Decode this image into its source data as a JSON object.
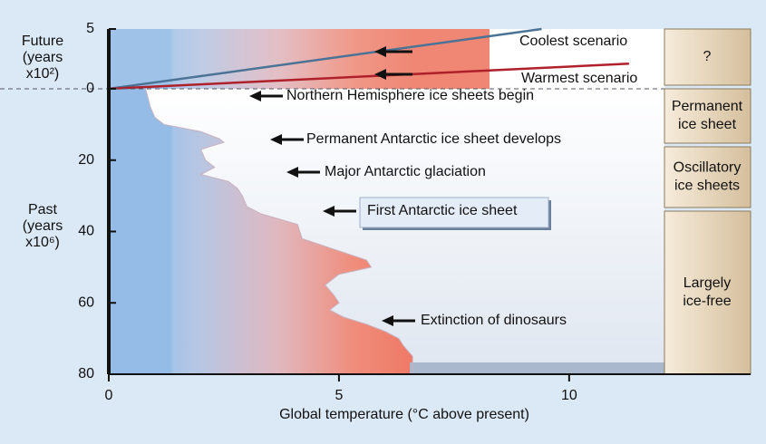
{
  "chart_data": {
    "type": "paleo-temperature",
    "xlabel": "Global temperature (°C above present)",
    "xlim": [
      0,
      14
    ],
    "xticks": [
      0,
      5,
      10
    ],
    "future_axis": {
      "label_lines": [
        "Future",
        "(years",
        "x10²)"
      ],
      "ylim": [
        0,
        5
      ],
      "yticks": [
        5,
        0
      ]
    },
    "past_axis": {
      "label_lines": [
        "Past",
        "(years",
        "x10⁶)"
      ],
      "ylim": [
        0,
        80
      ],
      "yticks": [
        20,
        40,
        60,
        80
      ]
    },
    "temperature_curve": {
      "age": [
        0,
        5,
        8,
        10,
        12,
        14,
        15,
        17,
        20,
        22,
        24,
        26,
        28,
        30,
        33,
        35,
        38,
        42,
        45,
        48,
        50,
        52,
        55,
        58,
        60,
        62,
        64,
        66,
        68,
        70,
        72,
        75,
        80
      ],
      "temp": [
        0.8,
        0.9,
        1.0,
        1.2,
        2.0,
        2.4,
        2.5,
        2.0,
        2.1,
        2.3,
        2.0,
        2.6,
        2.8,
        2.9,
        3.0,
        3.3,
        4.1,
        4.2,
        4.9,
        5.6,
        5.7,
        5.0,
        4.7,
        4.9,
        5.0,
        4.8,
        5.1,
        5.6,
        6.0,
        6.3,
        6.4,
        6.6,
        6.6
      ]
    },
    "series": [
      {
        "name": "Coolest scenario",
        "color": "#4a7396",
        "time": [
          0,
          5
        ],
        "temp": [
          0,
          9.4
        ]
      },
      {
        "name": "Warmest scenario",
        "color": "#b0202a",
        "time": [
          0,
          2.1
        ],
        "temp": [
          0,
          11.3
        ]
      }
    ],
    "annotations": [
      "Northern Hemisphere ice sheets begin",
      "Permanent Antarctic ice sheet develops",
      "Major Antarctic glaciation",
      "First Antarctic ice sheet",
      "Extinction of dinosaurs"
    ],
    "periods": [
      "?",
      "Permanent\nice sheet",
      "Oscillatory\nice sheets",
      "Largely\nice-free"
    ]
  }
}
